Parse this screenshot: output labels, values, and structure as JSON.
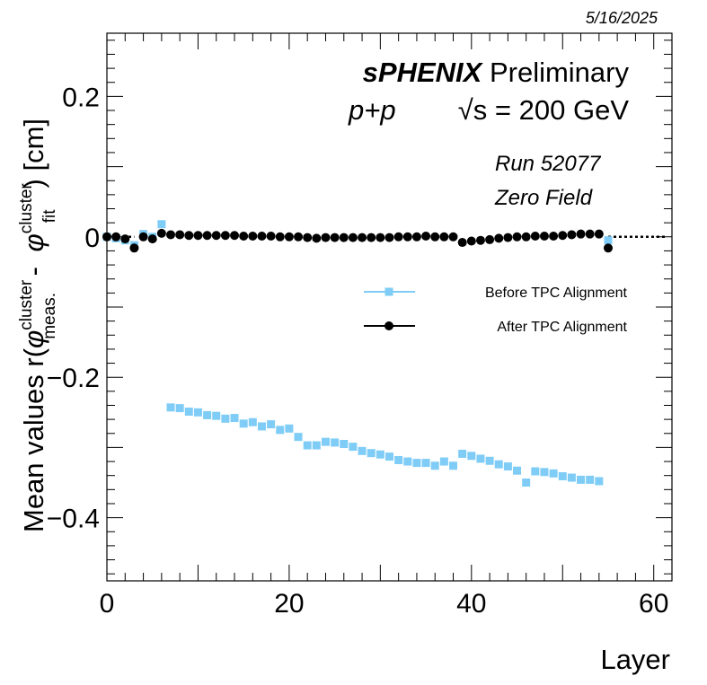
{
  "chart_data": {
    "type": "scatter",
    "date": "5/16/2025",
    "xlabel": "Layer",
    "ylabel": {
      "prefix": "Mean values r(",
      "phi": "φ",
      "sup1": "cluster",
      "sub1": "meas.",
      "minus": " - ",
      "sup2": "cluster",
      "sub2": "fit",
      "suffix": ") [cm]"
    },
    "xlim": [
      0,
      62
    ],
    "ylim": [
      -0.49,
      0.29
    ],
    "xticks": [
      {
        "v": 0,
        "label": "0"
      },
      {
        "v": 20,
        "label": "20"
      },
      {
        "v": 40,
        "label": "40"
      },
      {
        "v": 60,
        "label": "60"
      }
    ],
    "yticks": [
      {
        "v": 0.2,
        "label": "0.2"
      },
      {
        "v": 0,
        "label": "0"
      },
      {
        "v": -0.2,
        "label": "−0.2"
      },
      {
        "v": -0.4,
        "label": "−0.4"
      }
    ],
    "annotations": {
      "experiment_bold": "sPHENIX",
      "experiment_rest": " Preliminary",
      "collision": "p+p",
      "energy_sqrt": "√s",
      "energy_rest": " = 200 GeV",
      "run": "Run 52077",
      "field": "Zero Field"
    },
    "legend_position": "middle-right",
    "series": [
      {
        "name": "Before TPC  Alignment",
        "marker": "square",
        "color": "#7fcdf7",
        "x": [
          0,
          1,
          2,
          3,
          4,
          5,
          6,
          7,
          8,
          9,
          10,
          11,
          12,
          13,
          14,
          15,
          16,
          17,
          18,
          19,
          20,
          21,
          22,
          23,
          24,
          25,
          26,
          27,
          28,
          29,
          30,
          31,
          32,
          33,
          34,
          35,
          36,
          37,
          38,
          39,
          40,
          41,
          42,
          43,
          44,
          45,
          46,
          47,
          48,
          49,
          50,
          51,
          52,
          53,
          54,
          55
        ],
        "y": [
          0.0,
          -0.002,
          -0.005,
          -0.012,
          0.004,
          0.0,
          0.018,
          -0.243,
          -0.244,
          -0.249,
          -0.25,
          -0.254,
          -0.255,
          -0.259,
          -0.258,
          -0.266,
          -0.264,
          -0.27,
          -0.267,
          -0.275,
          -0.273,
          -0.285,
          -0.297,
          -0.297,
          -0.292,
          -0.293,
          -0.295,
          -0.299,
          -0.305,
          -0.308,
          -0.31,
          -0.313,
          -0.318,
          -0.32,
          -0.322,
          -0.322,
          -0.326,
          -0.32,
          -0.326,
          -0.309,
          -0.312,
          -0.316,
          -0.319,
          -0.324,
          -0.327,
          -0.333,
          -0.35,
          -0.334,
          -0.335,
          -0.337,
          -0.341,
          -0.343,
          -0.346,
          -0.346,
          -0.348,
          -0.005
        ]
      },
      {
        "name": "After TPC  Alignment",
        "marker": "circle",
        "color": "#000000",
        "x": [
          0,
          1,
          2,
          3,
          4,
          5,
          6,
          7,
          8,
          9,
          10,
          11,
          12,
          13,
          14,
          15,
          16,
          17,
          18,
          19,
          20,
          21,
          22,
          23,
          24,
          25,
          26,
          27,
          28,
          29,
          30,
          31,
          32,
          33,
          34,
          35,
          36,
          37,
          38,
          39,
          40,
          41,
          42,
          43,
          44,
          45,
          46,
          47,
          48,
          49,
          50,
          51,
          52,
          53,
          54,
          55
        ],
        "y": [
          0.0,
          0.0,
          -0.003,
          -0.016,
          0.0,
          -0.003,
          0.005,
          0.003,
          0.003,
          0.002,
          0.002,
          0.002,
          0.002,
          0.002,
          0.002,
          0.001,
          0.001,
          0.001,
          0.001,
          0.0,
          0.0,
          0.0,
          -0.001,
          -0.002,
          -0.001,
          -0.001,
          -0.001,
          -0.001,
          -0.001,
          -0.001,
          -0.001,
          -0.001,
          0.0,
          0.0,
          0.0,
          0.001,
          0.0,
          0.0,
          0.0,
          -0.008,
          -0.006,
          -0.005,
          -0.004,
          -0.002,
          -0.001,
          0.0,
          0.0,
          0.001,
          0.001,
          0.001,
          0.002,
          0.003,
          0.004,
          0.004,
          0.004,
          -0.016
        ]
      }
    ]
  }
}
